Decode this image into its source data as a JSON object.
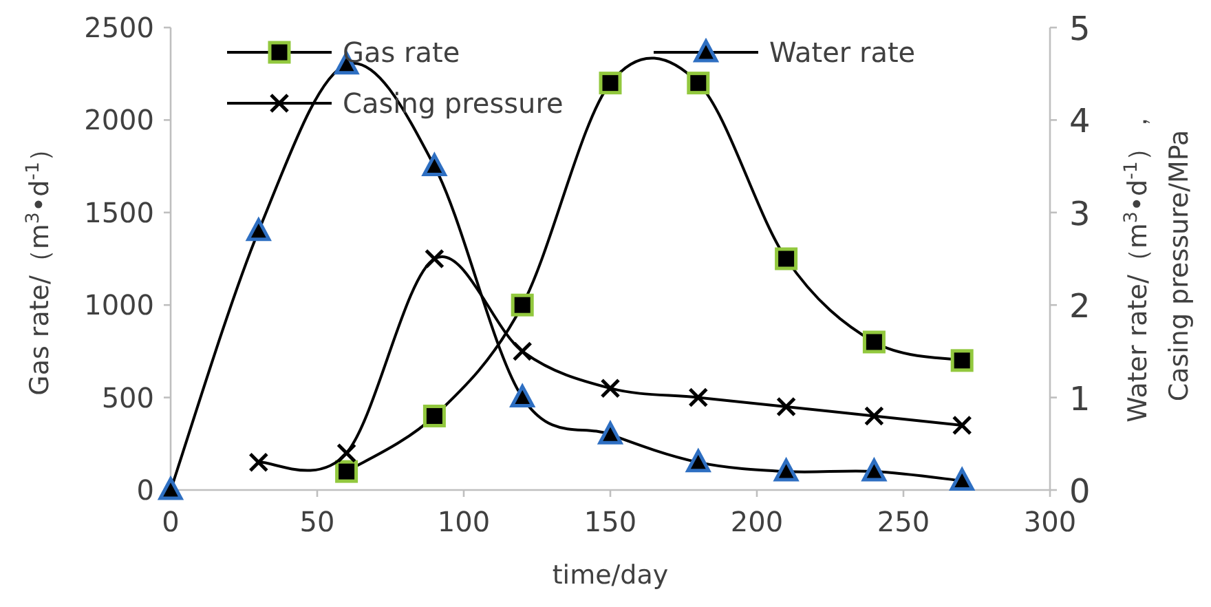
{
  "chart_data": {
    "type": "line",
    "xlabel": "time/day",
    "ylabel": "Gas rate/（m$^{3}$•d$^{-1}$）",
    "y2label": "Water rate/（m$^{3}$•d$^{-1}$），\nCasing pressure/MPa",
    "xlim": [
      0,
      300
    ],
    "xticks": [
      0,
      50,
      100,
      150,
      200,
      250,
      300
    ],
    "ylim": [
      0,
      2500
    ],
    "yticks": [
      0,
      500,
      1000,
      1500,
      2000,
      2500
    ],
    "y2lim": [
      0,
      5
    ],
    "y2ticks": [
      0,
      1,
      2,
      3,
      4,
      5
    ],
    "legend": "top",
    "grid": false,
    "series": [
      {
        "name": "Gas rate",
        "color": "#000000",
        "marker": "square",
        "x": [
          60,
          90,
          120,
          150,
          180,
          210,
          240,
          270
        ],
        "values": [
          100,
          400,
          1000,
          2200,
          2200,
          1250,
          800,
          700
        ]
      },
      {
        "name": "Water rate",
        "color": "#000000",
        "marker": "triangle",
        "axis": "y2",
        "x": [
          0,
          30,
          60,
          90,
          120,
          150,
          180,
          210,
          240,
          270
        ],
        "values": [
          0,
          2.8,
          4.6,
          3.5,
          1.0,
          0.6,
          0.3,
          0.2,
          0.2,
          0.1
        ]
      },
      {
        "name": "Casing pressure",
        "color": "#000000",
        "marker": "cross",
        "axis": "y2",
        "x": [
          30,
          60,
          90,
          120,
          150,
          180,
          210,
          240,
          270
        ],
        "values": [
          0.3,
          0.4,
          2.5,
          1.5,
          1.1,
          1.0,
          0.9,
          0.8,
          0.7
        ]
      }
    ]
  }
}
